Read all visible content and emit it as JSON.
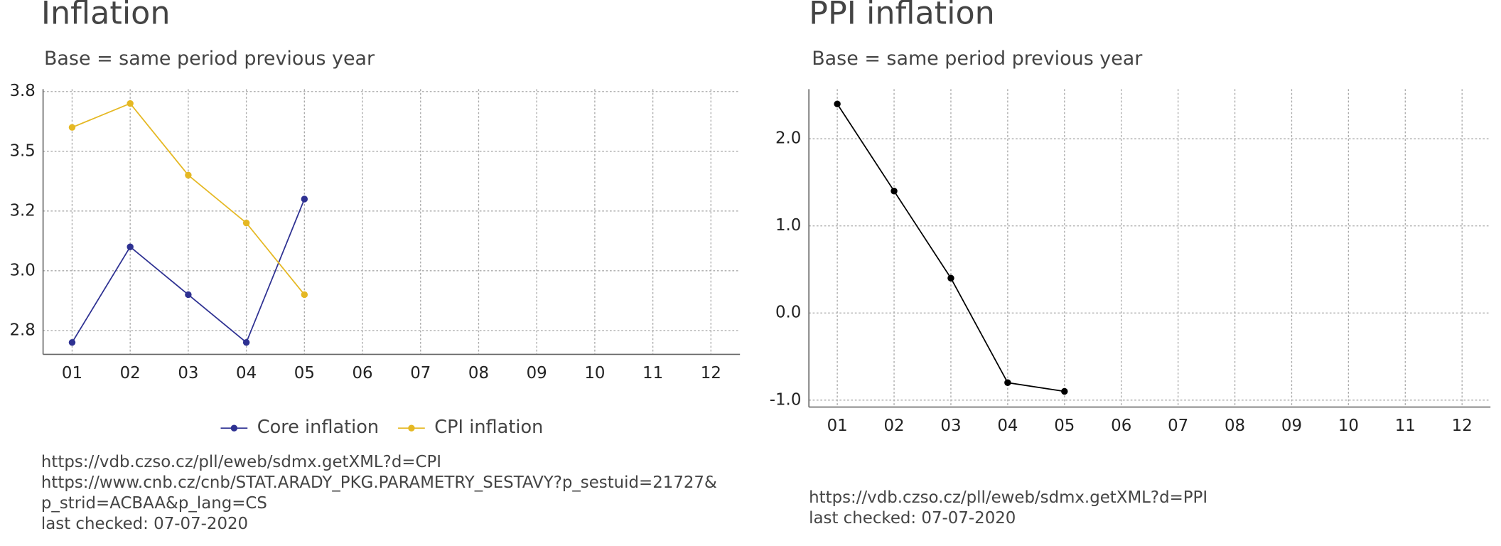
{
  "chart_data": [
    {
      "type": "line",
      "title": "Inflation",
      "subtitle": "Base = same period previous year",
      "categories": [
        "01",
        "02",
        "03",
        "04",
        "05",
        "06",
        "07",
        "08",
        "09",
        "10",
        "11",
        "12"
      ],
      "series": [
        {
          "name": "Core inflation",
          "color": "#2e3192",
          "values": [
            2.7,
            3.1,
            2.9,
            2.7,
            3.3,
            null,
            null,
            null,
            null,
            null,
            null,
            null
          ]
        },
        {
          "name": "CPI inflation",
          "color": "#e5b823",
          "values": [
            3.6,
            3.7,
            3.4,
            3.2,
            2.9,
            null,
            null,
            null,
            null,
            null,
            null,
            null
          ]
        }
      ],
      "ylim": [
        2.65,
        3.76
      ],
      "yticks": [
        {
          "value": 2.75,
          "label": "2.8"
        },
        {
          "value": 3.0,
          "label": "3.0"
        },
        {
          "value": 3.25,
          "label": "3.2"
        },
        {
          "value": 3.5,
          "label": "3.5"
        },
        {
          "value": 3.75,
          "label": "3.8"
        }
      ],
      "grid": true,
      "legend": "bottom",
      "source": [
        "https://vdb.czso.cz/pll/eweb/sdmx.getXML?d=CPI",
        "https://www.cnb.cz/cnb/STAT.ARADY_PKG.PARAMETRY_SESTAVY?p_sestuid=21727&",
        "p_strid=ACBAA&p_lang=CS",
        "last checked: 07-07-2020"
      ]
    },
    {
      "type": "line",
      "title": "PPI inflation",
      "subtitle": "Base = same period previous year",
      "categories": [
        "01",
        "02",
        "03",
        "04",
        "05",
        "06",
        "07",
        "08",
        "09",
        "10",
        "11",
        "12"
      ],
      "series": [
        {
          "color": "#000000",
          "values": [
            2.4,
            1.4,
            0.4,
            -0.8,
            -0.9,
            null,
            null,
            null,
            null,
            null,
            null,
            null
          ]
        }
      ],
      "ylim": [
        -1.08,
        2.57
      ],
      "yticks": [
        {
          "value": -1,
          "label": "-1.0"
        },
        {
          "value": 0,
          "label": "0.0"
        },
        {
          "value": 1,
          "label": "1.0"
        },
        {
          "value": 2,
          "label": "2.0"
        }
      ],
      "grid": true,
      "source": [
        "https://vdb.czso.cz/pll/eweb/sdmx.getXML?d=PPI",
        "last checked: 07-07-2020"
      ]
    }
  ]
}
